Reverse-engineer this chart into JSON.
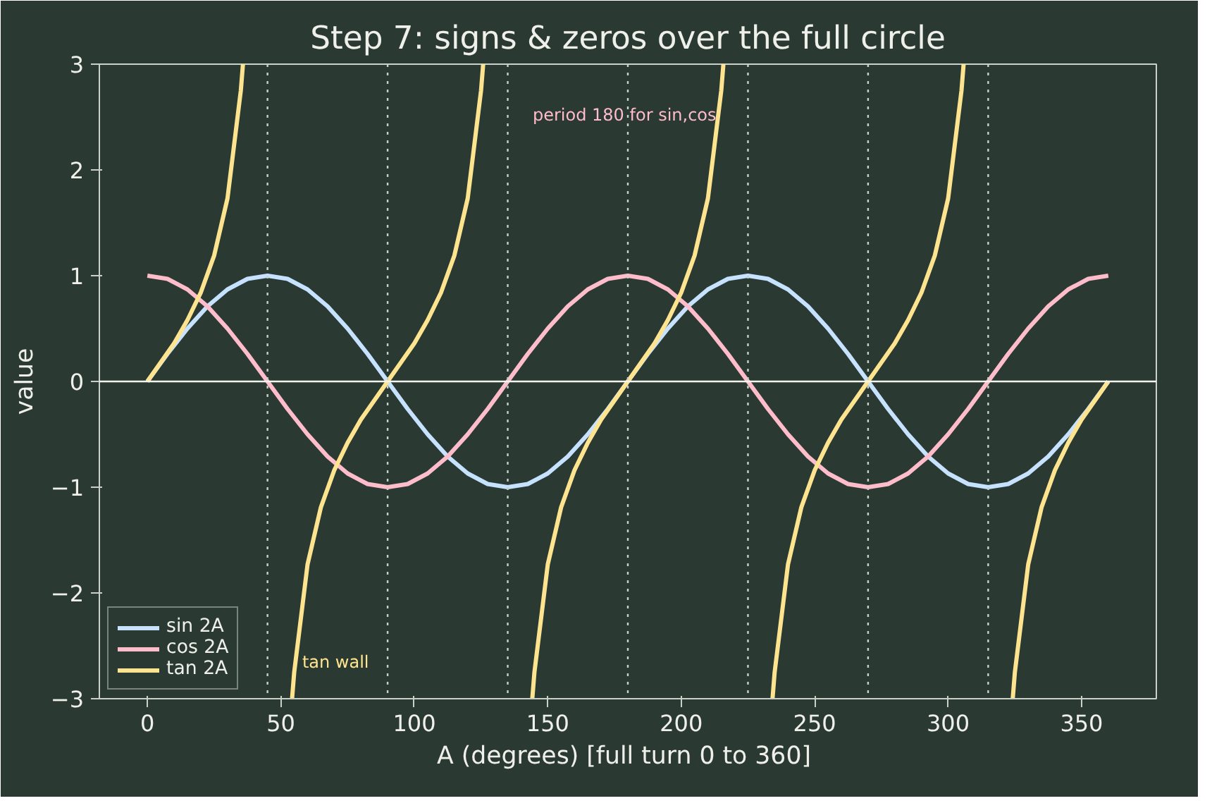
{
  "chart_data": {
    "type": "line",
    "title": "Step 7: signs & zeros over the full circle",
    "xlabel": "A (degrees)  [full turn 0 to 360]",
    "ylabel": "value",
    "x": [
      0,
      7.5,
      15,
      22.5,
      30,
      37.5,
      45,
      52.5,
      60,
      67.5,
      75,
      82.5,
      90,
      97.5,
      105,
      112.5,
      120,
      127.5,
      135,
      142.5,
      150,
      157.5,
      165,
      172.5,
      180,
      187.5,
      195,
      202.5,
      210,
      217.5,
      225,
      232.5,
      240,
      247.5,
      255,
      262.5,
      270,
      277.5,
      285,
      292.5,
      300,
      307.5,
      315,
      322.5,
      330,
      337.5,
      345,
      352.5,
      360
    ],
    "series": [
      {
        "name": "sin 2A",
        "color": "#c6e2ff",
        "values": [
          0,
          0.26,
          0.5,
          0.71,
          0.87,
          0.97,
          1,
          0.97,
          0.87,
          0.71,
          0.5,
          0.26,
          0,
          -0.26,
          -0.5,
          -0.71,
          -0.87,
          -0.97,
          -1,
          -0.97,
          -0.87,
          -0.71,
          -0.5,
          -0.26,
          0,
          0.26,
          0.5,
          0.71,
          0.87,
          0.97,
          1,
          0.97,
          0.87,
          0.71,
          0.5,
          0.26,
          0,
          -0.26,
          -0.5,
          -0.71,
          -0.87,
          -0.97,
          -1,
          -0.97,
          -0.87,
          -0.71,
          -0.5,
          -0.26,
          0
        ]
      },
      {
        "name": "cos 2A",
        "color": "#ffbcca",
        "values": [
          1,
          0.97,
          0.87,
          0.71,
          0.5,
          0.26,
          0,
          -0.26,
          -0.5,
          -0.71,
          -0.87,
          -0.97,
          -1,
          -0.97,
          -0.87,
          -0.71,
          -0.5,
          -0.26,
          0,
          0.26,
          0.5,
          0.71,
          0.87,
          0.97,
          1,
          0.97,
          0.87,
          0.71,
          0.5,
          0.26,
          0,
          -0.26,
          -0.5,
          -0.71,
          -0.87,
          -0.97,
          -1,
          -0.97,
          -0.87,
          -0.71,
          -0.5,
          -0.26,
          0,
          0.26,
          0.5,
          0.71,
          0.87,
          0.97,
          1
        ]
      },
      {
        "name": "tan 2A",
        "color": "#ffe48f",
        "x": [
          0,
          5,
          10,
          15,
          20,
          25,
          30,
          35,
          35.8,
          45,
          54.2,
          55,
          60,
          65,
          70,
          75,
          80,
          85,
          90,
          95,
          100,
          105,
          110,
          115,
          120,
          125,
          125.8,
          135,
          144.2,
          145,
          150,
          155,
          160,
          165,
          170,
          175,
          180,
          185,
          190,
          195,
          200,
          205,
          210,
          215,
          215.8,
          225,
          234.2,
          235,
          240,
          245,
          250,
          255,
          260,
          265,
          270,
          275,
          280,
          285,
          290,
          295,
          300,
          305,
          305.8,
          315,
          324.2,
          325,
          330,
          335,
          340,
          345,
          350,
          355,
          360
        ],
        "values": [
          0,
          0.18,
          0.36,
          0.58,
          0.84,
          1.19,
          1.73,
          2.75,
          3,
          null,
          -3,
          -2.75,
          -1.73,
          -1.19,
          -0.84,
          -0.58,
          -0.36,
          -0.18,
          0,
          0.18,
          0.36,
          0.58,
          0.84,
          1.19,
          1.73,
          2.75,
          3,
          null,
          -3,
          -2.75,
          -1.73,
          -1.19,
          -0.84,
          -0.58,
          -0.36,
          -0.18,
          0,
          0.18,
          0.36,
          0.58,
          0.84,
          1.19,
          1.73,
          2.75,
          3,
          null,
          -3,
          -2.75,
          -1.73,
          -1.19,
          -0.84,
          -0.58,
          -0.36,
          -0.18,
          0,
          0.18,
          0.36,
          0.58,
          0.84,
          1.19,
          1.73,
          2.75,
          3,
          null,
          -3,
          -2.75,
          -1.73,
          -1.19,
          -0.84,
          -0.58,
          -0.36,
          -0.18,
          0
        ]
      }
    ],
    "xlim": [
      -18,
      378
    ],
    "xticks": [
      0,
      50,
      100,
      150,
      200,
      250,
      300,
      350
    ],
    "ylim": [
      -3,
      3
    ],
    "yticks": [
      -3,
      -2,
      -1,
      0,
      1,
      2,
      3
    ],
    "ref_lines": [
      {
        "axis": "y",
        "value": 0,
        "color": "#f5f5f0",
        "line_style": "solid"
      },
      {
        "axis": "x",
        "value": 45,
        "color": "#c8d0c8",
        "line_style": "dotted"
      },
      {
        "axis": "x",
        "value": 90,
        "color": "#c8d0c8",
        "line_style": "dotted"
      },
      {
        "axis": "x",
        "value": 135,
        "color": "#c8d0c8",
        "line_style": "dotted"
      },
      {
        "axis": "x",
        "value": 180,
        "color": "#c8d0c8",
        "line_style": "dotted"
      },
      {
        "axis": "x",
        "value": 225,
        "color": "#c8d0c8",
        "line_style": "dotted"
      },
      {
        "axis": "x",
        "value": 270,
        "color": "#c8d0c8",
        "line_style": "dotted"
      },
      {
        "axis": "x",
        "value": 315,
        "color": "#c8d0c8",
        "line_style": "dotted"
      }
    ],
    "annotations": [
      "period 180 for sin,cos",
      {
        "text": "tan wall",
        "x": 58,
        "y": -2.65
      }
    ],
    "grid": false,
    "legend": "bottom left",
    "line_style": "solid",
    "marker": "none"
  }
}
